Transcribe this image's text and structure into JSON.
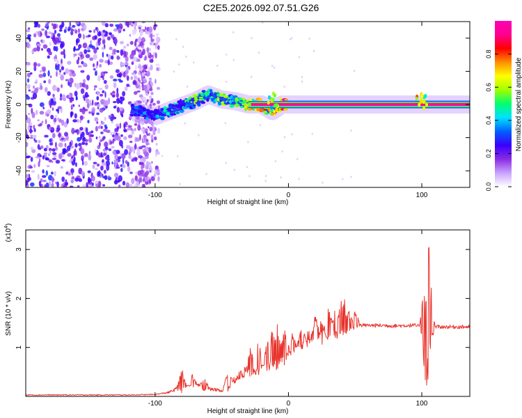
{
  "title": "C2E5.2026.092.07.51.G26",
  "chart_data": [
    {
      "type": "heatmap",
      "name": "spectrogram",
      "xlabel": "Height of straight line (km)",
      "ylabel": "Frequency (Hz)",
      "xlim": [
        -197,
        136
      ],
      "ylim": [
        -50,
        50
      ],
      "xticks": [
        -100,
        0,
        100
      ],
      "xtick_labels": [
        "-100",
        "0",
        "100"
      ],
      "yticks": [
        -40,
        -20,
        0,
        20,
        40
      ],
      "ytick_labels": [
        "-40",
        "-20",
        "0",
        "20",
        "40"
      ],
      "colorbar": {
        "label": "Normalized spectral amplitude",
        "range": [
          0,
          1
        ],
        "ticks": [
          0.0,
          0.2,
          0.4,
          0.6,
          0.8
        ],
        "tick_labels": [
          "0.0",
          "0.2",
          "0.4",
          "0.6",
          "0.8"
        ],
        "colors": [
          "#ffffff",
          "#c9a2ff",
          "#8a2be2",
          "#3a00ff",
          "#0060ff",
          "#00e0ff",
          "#00ff70",
          "#a0ff00",
          "#ffff00",
          "#ff9000",
          "#ff0000",
          "#ff0090",
          "#ff00b4"
        ]
      },
      "noise_region_x": [
        -197,
        -100
      ],
      "trace": [
        {
          "x": -118,
          "y": -3,
          "amp": 0.35
        },
        {
          "x": -110,
          "y": -5,
          "amp": 0.3
        },
        {
          "x": -100,
          "y": -7,
          "amp": 0.32
        },
        {
          "x": -90,
          "y": -4,
          "amp": 0.4
        },
        {
          "x": -80,
          "y": -1,
          "amp": 0.45
        },
        {
          "x": -70,
          "y": 2,
          "amp": 0.5
        },
        {
          "x": -60,
          "y": 6,
          "amp": 0.45
        },
        {
          "x": -50,
          "y": 3,
          "amp": 0.55
        },
        {
          "x": -40,
          "y": 2,
          "amp": 0.5
        },
        {
          "x": -30,
          "y": 0,
          "amp": 0.65
        },
        {
          "x": -20,
          "y": 0,
          "amp": 0.75
        },
        {
          "x": -12,
          "y": -4,
          "amp": 0.7
        },
        {
          "x": -5,
          "y": 0,
          "amp": 0.8
        },
        {
          "x": 0,
          "y": 0,
          "amp": 0.95
        },
        {
          "x": 50,
          "y": 0,
          "amp": 0.97
        },
        {
          "x": 100,
          "y": 0,
          "amp": 0.93
        },
        {
          "x": 136,
          "y": 0,
          "amp": 0.95
        }
      ]
    },
    {
      "type": "line",
      "name": "snr",
      "xlabel": "Height of straight line (km)",
      "ylabel": "SNR (10 * v/v)",
      "scale_label_prefix": "(x10",
      "scale_label_exp": "4",
      "scale_label_suffix": ")",
      "color": "#e8322b",
      "xlim": [
        -197,
        136
      ],
      "ylim": [
        0,
        3.4
      ],
      "xticks": [
        -100,
        0,
        100
      ],
      "xtick_labels": [
        "-100",
        "0",
        "100"
      ],
      "yticks": [
        1,
        2,
        3
      ],
      "ytick_labels": [
        "1",
        "2",
        "3"
      ],
      "series": [
        {
          "name": "SNR envelope",
          "x": [
            -197,
            -120,
            -100,
            -90,
            -80,
            -70,
            -60,
            -50,
            -40,
            -30,
            -20,
            -10,
            0,
            10,
            20,
            30,
            40,
            50,
            60,
            70,
            80,
            90,
            95,
            100,
            103,
            106,
            110,
            120,
            136
          ],
          "y": [
            0.03,
            0.03,
            0.04,
            0.08,
            0.2,
            0.25,
            0.15,
            0.12,
            0.35,
            0.55,
            0.65,
            0.75,
            0.9,
            1.1,
            1.2,
            1.35,
            1.4,
            1.45,
            1.45,
            1.45,
            1.44,
            1.45,
            1.45,
            1.4,
            0.7,
            1.3,
            1.42,
            1.42,
            1.42
          ]
        },
        {
          "name": "SNR spikes",
          "x": [
            -80,
            -72,
            -63,
            -45,
            -28,
            -23,
            -18,
            -15,
            -12,
            -8,
            -3,
            3,
            10,
            20,
            30,
            36,
            40,
            42,
            45,
            50,
            102,
            104,
            105,
            106,
            108
          ],
          "y": [
            0.6,
            0.45,
            0.42,
            0.6,
            1.1,
            1.25,
            0.8,
            1.35,
            1.45,
            1.6,
            1.5,
            1.3,
            1.5,
            1.7,
            1.9,
            2.0,
            2.1,
            2.0,
            1.85,
            1.8,
            2.4,
            0.3,
            3.35,
            2.5,
            0.25
          ]
        }
      ]
    }
  ]
}
